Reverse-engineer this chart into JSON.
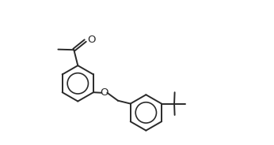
{
  "bg_color": "#ffffff",
  "line_color": "#2a2a2a",
  "line_width": 1.4,
  "figsize": [
    3.46,
    1.84
  ],
  "dpi": 100,
  "O_label": "O",
  "font_size": 9.5,
  "xlim": [
    -0.5,
    9.0
  ],
  "ylim": [
    0.2,
    6.8
  ]
}
